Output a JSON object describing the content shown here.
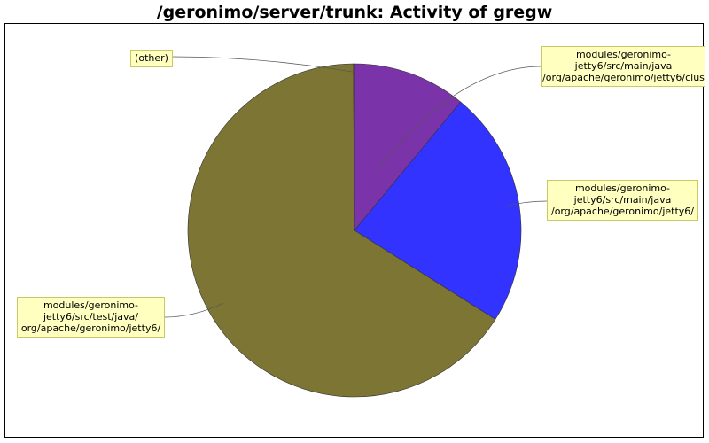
{
  "chart_data": {
    "type": "pie",
    "title": "/geronimo/server/trunk: Activity of gregw",
    "slices": [
      {
        "name": "modules/geronimo-jetty6/src/main/java/org/apache/geronimo/jetty6/clus",
        "label_lines": [
          "modules/geronimo-",
          "jetty6/src/main/java",
          "/org/apache/geronimo/jetty6/clus"
        ],
        "value": 11,
        "color": "#7a33a8"
      },
      {
        "name": "modules/geronimo-jetty6/src/main/java/org/apache/geronimo/jetty6/",
        "label_lines": [
          "modules/geronimo-",
          "jetty6/src/main/java",
          "/org/apache/geronimo/jetty6/"
        ],
        "value": 23,
        "color": "#3333ff"
      },
      {
        "name": "modules/geronimo-jetty6/src/test/java/org/apache/geronimo/jetty6/",
        "label_lines": [
          "modules/geronimo-",
          "jetty6/src/test/java/",
          "org/apache/geronimo/jetty6/"
        ],
        "value": 66,
        "color": "#7d7533"
      },
      {
        "name": "(other)",
        "label_lines": [
          "(other)"
        ],
        "value": 0.1,
        "color": "#999999"
      }
    ],
    "label_background": "#ffffc0",
    "label_border": "#c8c864",
    "start_angle": "top",
    "direction": "clockwise"
  }
}
